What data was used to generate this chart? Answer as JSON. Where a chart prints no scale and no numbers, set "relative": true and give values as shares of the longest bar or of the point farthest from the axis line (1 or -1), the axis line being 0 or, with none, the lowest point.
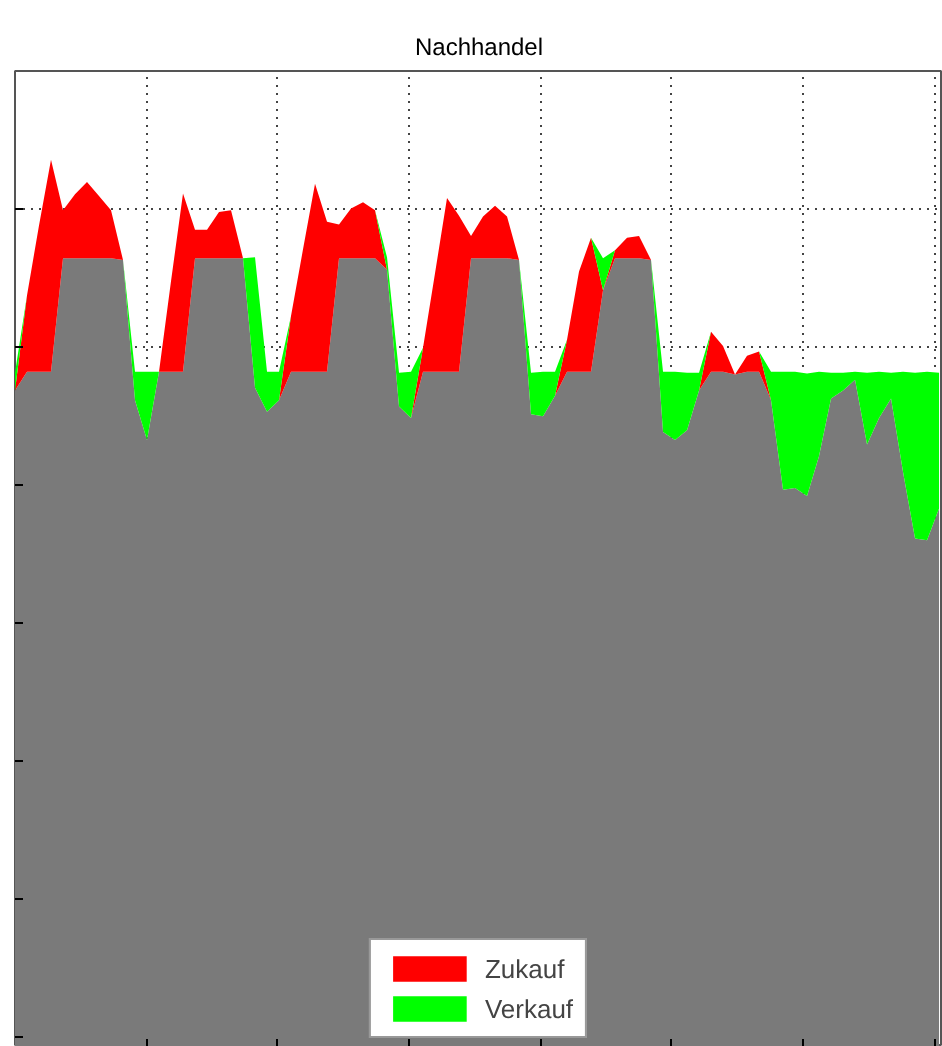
{
  "chart_data": {
    "type": "area",
    "title": "Nachhandel",
    "relative": true,
    "stacked": true,
    "grid": true,
    "legend": "bottom",
    "tick_labels": false,
    "categories": [
      null,
      null,
      null,
      null,
      null,
      null,
      null,
      null,
      null,
      null,
      null,
      null,
      null,
      null,
      null,
      null,
      null,
      null,
      null,
      null,
      null,
      null,
      null,
      null,
      null,
      null,
      null,
      null,
      null,
      null,
      null,
      null,
      null,
      null,
      null,
      null,
      null,
      null,
      null,
      null,
      null,
      null,
      null,
      null,
      null,
      null,
      null,
      null,
      null,
      null,
      null,
      null,
      null,
      null,
      null,
      null,
      null,
      null,
      null,
      null,
      null,
      null,
      null,
      null,
      null,
      null,
      null,
      null,
      null,
      null,
      null,
      null,
      null,
      null,
      null,
      null,
      null,
      null
    ],
    "series": [
      {
        "color": "#7a7a7a",
        "values": [
          0.74,
          0.761,
          0.761,
          0.761,
          0.889,
          0.889,
          0.889,
          0.889,
          0.889,
          0.887,
          0.729,
          0.684,
          0.761,
          0.761,
          0.761,
          0.889,
          0.889,
          0.889,
          0.889,
          0.889,
          0.743,
          0.716,
          0.729,
          0.761,
          0.761,
          0.761,
          0.761,
          0.889,
          0.889,
          0.889,
          0.889,
          0.876,
          0.722,
          0.709,
          0.761,
          0.761,
          0.761,
          0.761,
          0.889,
          0.889,
          0.889,
          0.889,
          0.887,
          0.713,
          0.711,
          0.734,
          0.761,
          0.761,
          0.761,
          0.853,
          0.889,
          0.889,
          0.889,
          0.887,
          0.693,
          0.684,
          0.695,
          0.74,
          0.761,
          0.761,
          0.758,
          0.761,
          0.761,
          0.729,
          0.628,
          0.63,
          0.621,
          0.666,
          0.731,
          0.74,
          0.752,
          0.679,
          0.709,
          0.731,
          0.648,
          0.573,
          0.571,
          0.607
        ]
      },
      {
        "name": "Zukauf",
        "color": "#ff0000",
        "values": [
          0,
          0.086,
          0.165,
          0.239,
          0.054,
          0.072,
          0.086,
          0.07,
          0.054,
          0,
          null,
          null,
          0,
          0.102,
          0.201,
          0.032,
          0.032,
          0.052,
          0.054,
          0,
          null,
          null,
          0,
          0.063,
          0.138,
          0.212,
          0.169,
          0.038,
          0.056,
          0.063,
          0.054,
          0,
          null,
          0,
          0.027,
          0.111,
          0.196,
          0.176,
          0.025,
          0.047,
          0.059,
          0.047,
          0,
          null,
          null,
          0,
          0.036,
          0.113,
          0.151,
          0,
          0.009,
          0.023,
          0.025,
          0,
          null,
          null,
          null,
          0,
          0.045,
          0.029,
          0,
          0.018,
          0.023,
          0,
          null,
          null,
          null,
          null,
          null,
          null,
          null,
          null,
          null,
          null,
          null,
          null,
          null,
          null
        ]
      },
      {
        "name": "Verkauf",
        "color": "#00ff00",
        "values": [
          0.02,
          0,
          null,
          null,
          null,
          null,
          null,
          null,
          null,
          0,
          0.032,
          0.077,
          0,
          null,
          null,
          null,
          null,
          null,
          null,
          0,
          0.147,
          0.045,
          0.032,
          0,
          null,
          null,
          null,
          null,
          null,
          null,
          0,
          0.014,
          0.038,
          0.052,
          0,
          null,
          null,
          null,
          null,
          null,
          null,
          null,
          0,
          0.047,
          0.05,
          0.027,
          0,
          null,
          0,
          0.036,
          0,
          null,
          null,
          0,
          0.068,
          0.077,
          0.065,
          0.02,
          0,
          null,
          null,
          null,
          0,
          0.032,
          0.133,
          0.131,
          0.138,
          0.095,
          0.029,
          0.02,
          0.009,
          0.081,
          0.052,
          0.029,
          0.113,
          0.187,
          0.19,
          0.153
        ]
      }
    ]
  }
}
